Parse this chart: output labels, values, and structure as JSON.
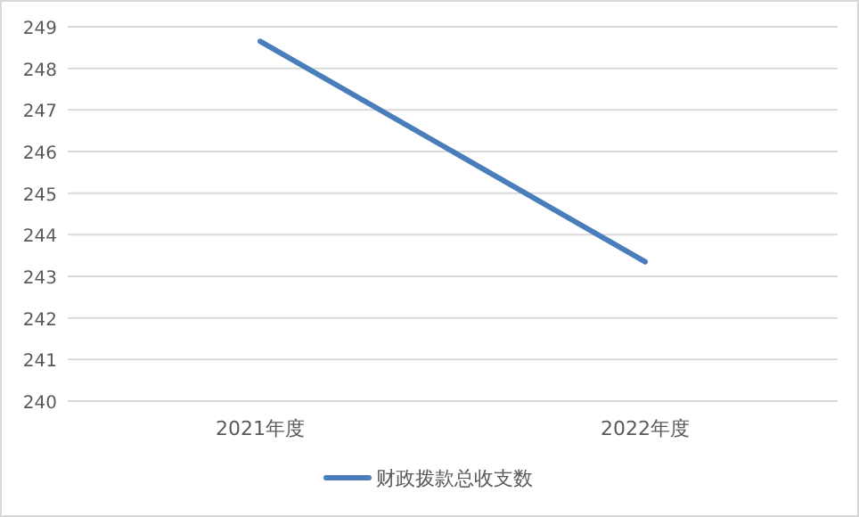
{
  "chart_data": {
    "type": "line",
    "categories": [
      "2021年度",
      "2022年度"
    ],
    "series": [
      {
        "name": "财政拨款总收支数",
        "color": "#4a7ebb",
        "values": [
          248.65,
          243.35
        ]
      }
    ],
    "ylim": [
      240,
      249
    ],
    "yticks": [
      240,
      241,
      242,
      243,
      244,
      245,
      246,
      247,
      248,
      249
    ],
    "grid": "y",
    "legend": "bottom",
    "marker": "none",
    "line_style": "solid"
  }
}
